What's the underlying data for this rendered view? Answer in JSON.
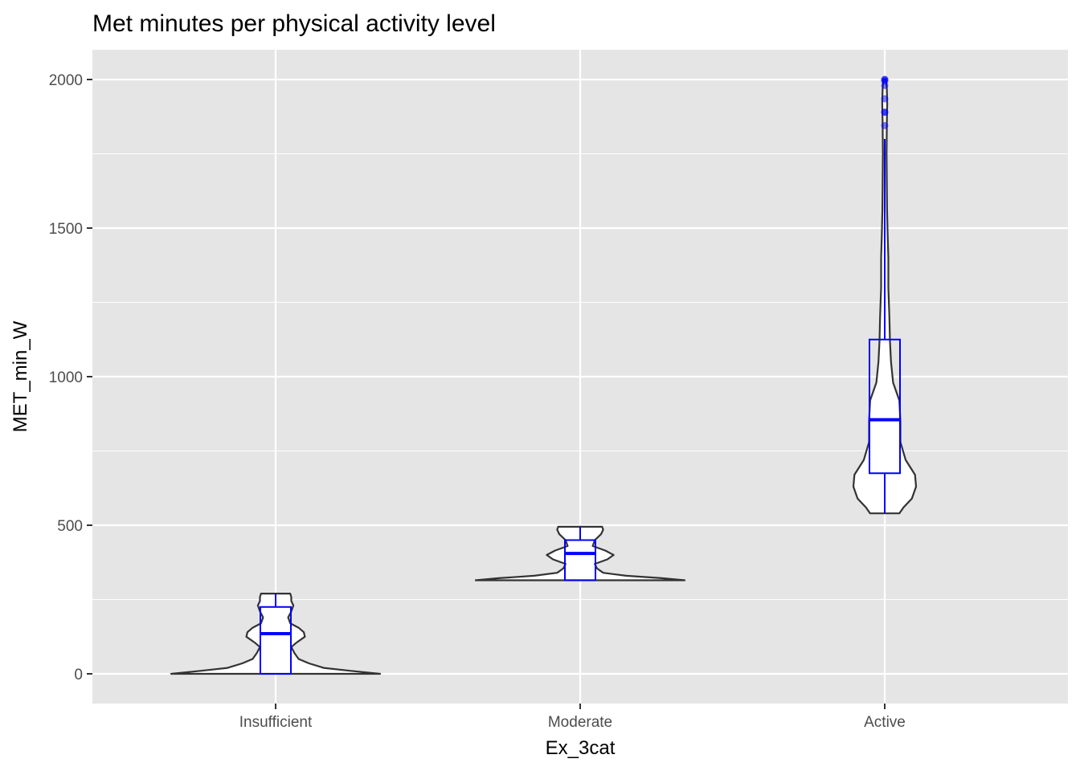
{
  "chart_data": {
    "type": "violin-boxplot",
    "title": "Met minutes per physical activity level",
    "xlabel": "Ex_3cat",
    "ylabel": "MET_min_W",
    "categories": [
      "Insufficient",
      "Moderate",
      "Active"
    ],
    "ylim": [
      -100,
      2100
    ],
    "yticks": [
      0,
      500,
      1000,
      1500,
      2000
    ],
    "y_tick_labels": [
      "0",
      "500",
      "1000",
      "1500",
      "2000"
    ],
    "grid": true,
    "colors": {
      "panel": "#e5e5e5",
      "grid": "#ffffff",
      "violin_stroke": "#333333",
      "box": "#0000ff",
      "outlier": "#0000ff"
    },
    "groups": [
      {
        "name": "Insufficient",
        "box": {
          "min": 0,
          "q1": 0,
          "median": 135,
          "q3": 225,
          "max": 270
        },
        "outliers": [],
        "violin": [
          [
            0,
            1.0
          ],
          [
            10,
            0.72
          ],
          [
            20,
            0.46
          ],
          [
            35,
            0.32
          ],
          [
            50,
            0.22
          ],
          [
            70,
            0.18
          ],
          [
            90,
            0.15
          ],
          [
            105,
            0.2
          ],
          [
            125,
            0.28
          ],
          [
            140,
            0.27
          ],
          [
            155,
            0.22
          ],
          [
            170,
            0.14
          ],
          [
            190,
            0.12
          ],
          [
            210,
            0.15
          ],
          [
            230,
            0.17
          ],
          [
            245,
            0.15
          ],
          [
            258,
            0.15
          ],
          [
            270,
            0.14
          ]
        ]
      },
      {
        "name": "Moderate",
        "box": {
          "min": 315,
          "q1": 315,
          "median": 405,
          "q3": 450,
          "max": 495
        },
        "outliers": [],
        "violin": [
          [
            315,
            1.0
          ],
          [
            322,
            0.78
          ],
          [
            330,
            0.44
          ],
          [
            340,
            0.22
          ],
          [
            355,
            0.16
          ],
          [
            370,
            0.14
          ],
          [
            385,
            0.26
          ],
          [
            400,
            0.32
          ],
          [
            415,
            0.24
          ],
          [
            430,
            0.12
          ],
          [
            450,
            0.14
          ],
          [
            470,
            0.2
          ],
          [
            485,
            0.22
          ],
          [
            495,
            0.21
          ]
        ]
      },
      {
        "name": "Active",
        "box": {
          "min": 540,
          "q1": 675,
          "median": 855,
          "q3": 1125,
          "max": 1800
        },
        "outliers": [
          1845,
          1890,
          1890,
          1935,
          1980,
          1995,
          2000,
          2000
        ],
        "violin": [
          [
            540,
            0.14
          ],
          [
            560,
            0.18
          ],
          [
            590,
            0.26
          ],
          [
            630,
            0.3
          ],
          [
            670,
            0.29
          ],
          [
            720,
            0.2
          ],
          [
            780,
            0.15
          ],
          [
            850,
            0.15
          ],
          [
            920,
            0.14
          ],
          [
            980,
            0.08
          ],
          [
            1050,
            0.06
          ],
          [
            1120,
            0.05
          ],
          [
            1200,
            0.045
          ],
          [
            1300,
            0.035
          ],
          [
            1400,
            0.035
          ],
          [
            1480,
            0.028
          ],
          [
            1560,
            0.022
          ],
          [
            1650,
            0.02
          ],
          [
            1750,
            0.018
          ],
          [
            1850,
            0.02
          ],
          [
            1920,
            0.024
          ],
          [
            1970,
            0.02
          ],
          [
            2000,
            0.012
          ]
        ]
      }
    ]
  }
}
